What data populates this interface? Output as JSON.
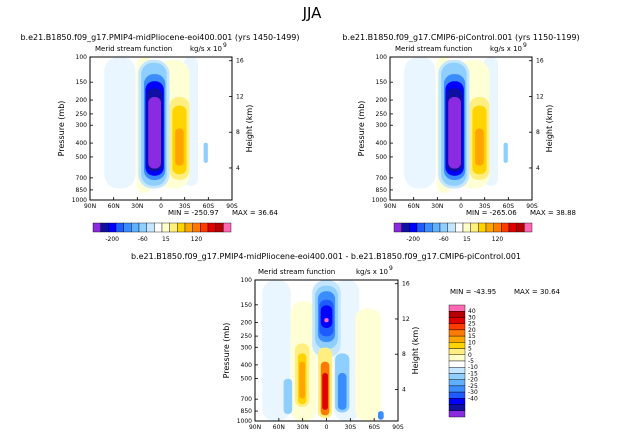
{
  "figure": {
    "title": "JJA",
    "season": "JJA"
  },
  "chart_data": [
    {
      "type": "heatmap",
      "name": "midPliocene",
      "case_label": "b.e21.B1850.f09_g17.PMIP4-midPliocene-eoi400.001  (yrs 1450-1499)",
      "title": "Merid stream function",
      "units": "kg/s x 10^9",
      "units_base": "kg/s x 10",
      "units_exp": "9",
      "xlabel": "",
      "ylabel": "Pressure (mb)",
      "ylabel_right": "Height (km)",
      "x_ticks": [
        "90N",
        "60N",
        "30N",
        "0",
        "30S",
        "60S",
        "90S"
      ],
      "y_ticks": [
        "100",
        "150",
        "200",
        "250",
        "300",
        "400",
        "500",
        "700",
        "850",
        "1000"
      ],
      "y_ticks_right": [
        "16",
        "12",
        "8",
        "4"
      ],
      "ylim": [
        1000,
        100
      ],
      "min_text": "MIN = -250.97",
      "max_text": "MAX = 36.64",
      "colorbar_labels": [
        "-200",
        "-60",
        "15",
        "120"
      ],
      "colorbar_colors": [
        "#8a2be2",
        "#1010a0",
        "#0000ff",
        "#1e5cff",
        "#3a8cff",
        "#5fb0ff",
        "#8fcfff",
        "#c4e7ff",
        "#ffffff",
        "#ffffc8",
        "#ffee80",
        "#ffd400",
        "#ffa500",
        "#ff7a00",
        "#ff3c00",
        "#e00000",
        "#b40000",
        "#ff69b4"
      ]
    },
    {
      "type": "heatmap",
      "name": "piControl",
      "case_label": "b.e21.B1850.f09_g17.CMIP6-piControl.001  (yrs 1150-1199)",
      "title": "Merid stream function",
      "units": "kg/s x 10^9",
      "units_base": "kg/s x 10",
      "units_exp": "9",
      "xlabel": "",
      "ylabel": "Pressure (mb)",
      "ylabel_right": "Height (km)",
      "x_ticks": [
        "90N",
        "60N",
        "30N",
        "0",
        "30S",
        "60S",
        "90S"
      ],
      "y_ticks": [
        "100",
        "150",
        "200",
        "250",
        "300",
        "400",
        "500",
        "700",
        "850",
        "1000"
      ],
      "y_ticks_right": [
        "16",
        "12",
        "8",
        "4"
      ],
      "ylim": [
        1000,
        100
      ],
      "min_text": "MIN = -265.06",
      "max_text": "MAX = 38.88",
      "colorbar_labels": [
        "-200",
        "-60",
        "15",
        "120"
      ],
      "colorbar_colors": [
        "#8a2be2",
        "#1010a0",
        "#0000ff",
        "#1e5cff",
        "#3a8cff",
        "#5fb0ff",
        "#8fcfff",
        "#c4e7ff",
        "#ffffff",
        "#ffffc8",
        "#ffee80",
        "#ffd400",
        "#ffa500",
        "#ff7a00",
        "#ff3c00",
        "#e00000",
        "#b40000",
        "#ff69b4"
      ]
    },
    {
      "type": "heatmap",
      "name": "difference",
      "case_label": "b.e21.B1850.f09_g17.PMIP4-midPliocene-eoi400.001  -  b.e21.B1850.f09_g17.CMIP6-piControl.001",
      "title": "Merid stream function",
      "units": "kg/s x 10^9",
      "units_base": "kg/s x 10",
      "units_exp": "9",
      "xlabel": "",
      "ylabel": "Pressure (mb)",
      "ylabel_right": "Height (km)",
      "x_ticks": [
        "90N",
        "60N",
        "30N",
        "0",
        "30S",
        "60S",
        "90S"
      ],
      "y_ticks": [
        "100",
        "150",
        "200",
        "250",
        "300",
        "400",
        "500",
        "700",
        "850",
        "1000"
      ],
      "y_ticks_right": [
        "16",
        "12",
        "8",
        "4"
      ],
      "ylim": [
        1000,
        100
      ],
      "min_text": "MIN = -43.95",
      "max_text": "MAX = 30.64",
      "colorbar_labels": [
        "40",
        "30",
        "25",
        "20",
        "15",
        "10",
        "5",
        "0",
        "-5",
        "-10",
        "-15",
        "-20",
        "-25",
        "-30",
        "-40"
      ],
      "colorbar_colors": [
        "#ff69b4",
        "#b40000",
        "#e00000",
        "#ff3c00",
        "#ff7a00",
        "#ffa500",
        "#ffd400",
        "#ffee80",
        "#ffffc8",
        "#ffffff",
        "#c4e7ff",
        "#8fcfff",
        "#5fb0ff",
        "#3a8cff",
        "#1e5cff",
        "#0000ff",
        "#1010a0",
        "#8a2be2"
      ]
    }
  ]
}
